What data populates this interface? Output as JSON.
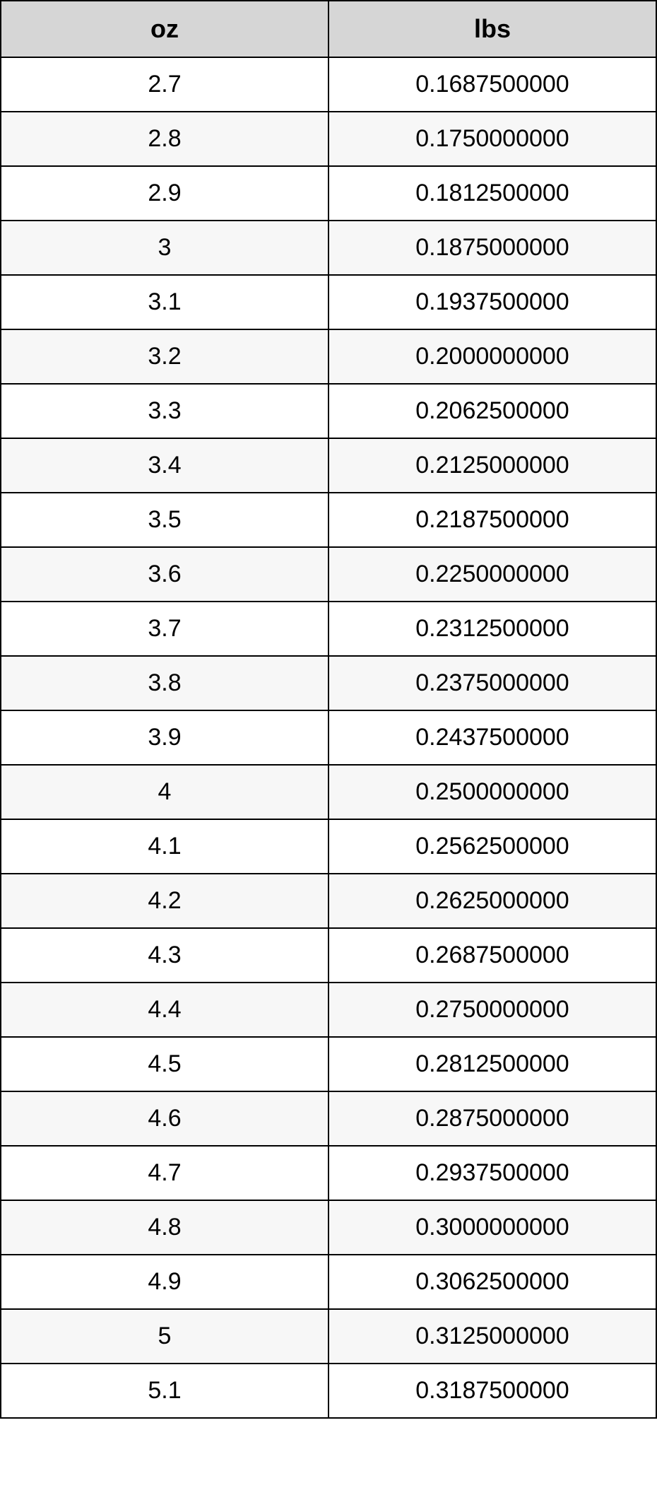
{
  "conversion_table": {
    "type": "table",
    "columns": [
      "oz",
      "lbs"
    ],
    "rows": [
      [
        "2.7",
        "0.1687500000"
      ],
      [
        "2.8",
        "0.1750000000"
      ],
      [
        "2.9",
        "0.1812500000"
      ],
      [
        "3",
        "0.1875000000"
      ],
      [
        "3.1",
        "0.1937500000"
      ],
      [
        "3.2",
        "0.2000000000"
      ],
      [
        "3.3",
        "0.2062500000"
      ],
      [
        "3.4",
        "0.2125000000"
      ],
      [
        "3.5",
        "0.2187500000"
      ],
      [
        "3.6",
        "0.2250000000"
      ],
      [
        "3.7",
        "0.2312500000"
      ],
      [
        "3.8",
        "0.2375000000"
      ],
      [
        "3.9",
        "0.2437500000"
      ],
      [
        "4",
        "0.2500000000"
      ],
      [
        "4.1",
        "0.2562500000"
      ],
      [
        "4.2",
        "0.2625000000"
      ],
      [
        "4.3",
        "0.2687500000"
      ],
      [
        "4.4",
        "0.2750000000"
      ],
      [
        "4.5",
        "0.2812500000"
      ],
      [
        "4.6",
        "0.2875000000"
      ],
      [
        "4.7",
        "0.2937500000"
      ],
      [
        "4.8",
        "0.3000000000"
      ],
      [
        "4.9",
        "0.3062500000"
      ],
      [
        "5",
        "0.3125000000"
      ],
      [
        "5.1",
        "0.3187500000"
      ]
    ],
    "header_bg_color": "#d6d6d6",
    "border_color": "#000000",
    "row_odd_bg": "#ffffff",
    "row_even_bg": "#f7f7f7",
    "header_fontsize": 36,
    "cell_fontsize": 34,
    "text_color": "#000000"
  }
}
